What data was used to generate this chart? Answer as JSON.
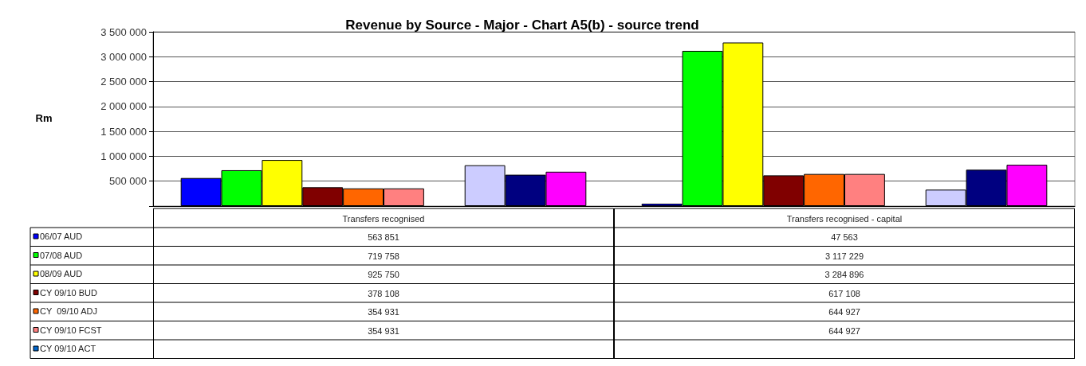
{
  "chart_data": {
    "type": "bar",
    "title": "Revenue by Source - Major - Chart A5(b) - source trend",
    "ylabel": "Rm",
    "categories": [
      "Transfers recognised",
      "Transfers recognised - capital"
    ],
    "ylim": [
      0,
      3500000
    ],
    "yticks": [
      {
        "value": 0,
        "label": null
      },
      {
        "value": 500000,
        "label": "500 000"
      },
      {
        "value": 1000000,
        "label": "1 000 000"
      },
      {
        "value": 1500000,
        "label": "1 500 000"
      },
      {
        "value": 2000000,
        "label": "2 000 000"
      },
      {
        "value": 2500000,
        "label": "2 500 000"
      },
      {
        "value": 3000000,
        "label": "3 000 000"
      },
      {
        "value": 3500000,
        "label": "3 500 000"
      }
    ],
    "grid": "y",
    "legend": "bottom",
    "series": [
      {
        "name": "06/07 AUD",
        "color": "#0000ff",
        "values": [
          563851,
          47563
        ],
        "value_labels": [
          "563 851",
          "47 563"
        ]
      },
      {
        "name": "07/08 AUD",
        "color": "#00ff00",
        "values": [
          719758,
          3117229
        ],
        "value_labels": [
          "719 758",
          "3 117 229"
        ]
      },
      {
        "name": "08/09 AUD",
        "color": "#ffff00",
        "values": [
          925750,
          3284896
        ],
        "value_labels": [
          "925 750",
          "3 284 896"
        ]
      },
      {
        "name": "CY 09/10 BUD",
        "color": "#800000",
        "values": [
          378108,
          617108
        ],
        "value_labels": [
          "378 108",
          "617 108"
        ]
      },
      {
        "name": "CY  09/10 ADJ",
        "color": "#ff6600",
        "values": [
          354931,
          644927
        ],
        "value_labels": [
          "354 931",
          "644 927"
        ]
      },
      {
        "name": "CY 09/10 FCST",
        "color": "#ff8080",
        "values": [
          354931,
          644927
        ],
        "value_labels": [
          "354 931",
          "644 927"
        ]
      },
      {
        "name": "CY 09/10 ACT",
        "color": "#0066cc",
        "values": [
          null,
          null
        ],
        "value_labels": [
          null,
          null
        ]
      },
      {
        "color": "#ccccff",
        "values": [
          820000,
          330000
        ]
      },
      {
        "color": "#000080",
        "values": [
          630000,
          730000
        ]
      },
      {
        "color": "#ff00ff",
        "values": [
          690000,
          830000
        ]
      }
    ]
  }
}
